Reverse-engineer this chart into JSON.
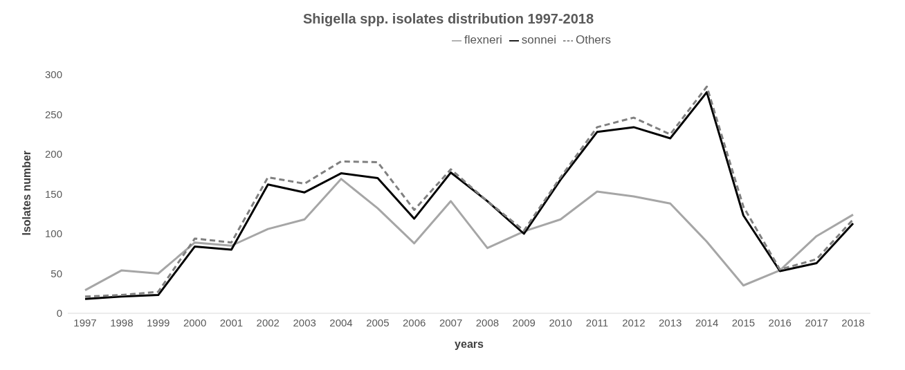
{
  "chart_data": {
    "type": "line",
    "title": "Shigella spp. isolates distribution 1997-2018",
    "xlabel": "years",
    "ylabel": "Isolates number",
    "categories": [
      "1997",
      "1998",
      "1999",
      "2000",
      "2001",
      "2002",
      "2003",
      "2004",
      "2005",
      "2006",
      "2007",
      "2008",
      "2009",
      "2010",
      "2011",
      "2012",
      "2013",
      "2014",
      "2015",
      "2016",
      "2017",
      "2018"
    ],
    "series": [
      {
        "name": "flexneri",
        "color": "#a6a6a6",
        "line_style": "solid",
        "values": [
          29,
          54,
          50,
          89,
          85,
          106,
          118,
          169,
          132,
          88,
          141,
          82,
          103,
          118,
          153,
          147,
          138,
          90,
          35,
          54,
          97,
          124
        ]
      },
      {
        "name": "sonnei",
        "color": "#000000",
        "line_style": "solid",
        "values": [
          18,
          21,
          23,
          84,
          80,
          162,
          152,
          176,
          170,
          119,
          177,
          141,
          100,
          168,
          228,
          234,
          220,
          278,
          123,
          53,
          63,
          113
        ]
      },
      {
        "name": "Others",
        "color": "#808080",
        "line_style": "dashed",
        "values": [
          21,
          23,
          27,
          94,
          89,
          171,
          163,
          191,
          190,
          130,
          181,
          141,
          104,
          171,
          234,
          246,
          225,
          285,
          134,
          55,
          68,
          118
        ]
      }
    ],
    "ylim": [
      0,
      300
    ],
    "yticks": [
      0,
      50,
      100,
      150,
      200,
      250,
      300
    ],
    "grid": false,
    "legend": "top",
    "marker": "none"
  }
}
